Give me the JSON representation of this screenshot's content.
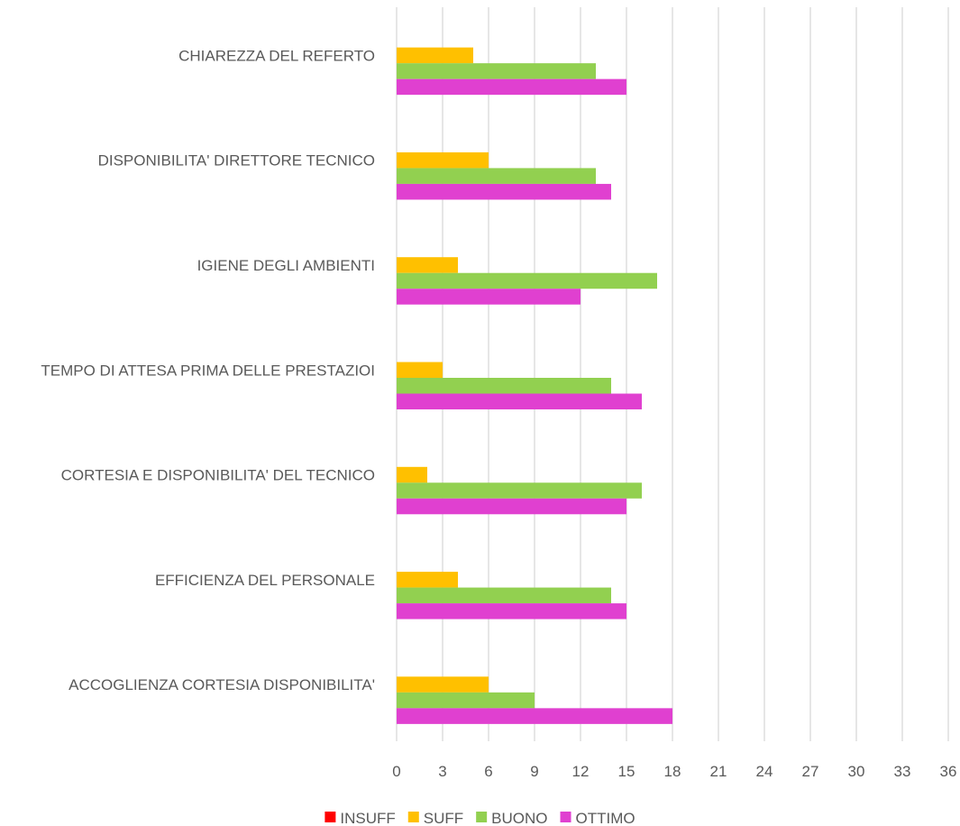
{
  "chart_data": {
    "type": "bar",
    "orientation": "horizontal",
    "categories": [
      "CHIAREZZA DEL REFERTO",
      "DISPONIBILITA' DIRETTORE TECNICO",
      "IGIENE DEGLI AMBIENTI",
      "TEMPO DI ATTESA PRIMA DELLE PRESTAZIOI",
      "CORTESIA E DISPONIBILITA' DEL TECNICO",
      "EFFICIENZA DEL PERSONALE",
      "ACCOGLIENZA CORTESIA DISPONIBILITA'"
    ],
    "series": [
      {
        "name": "INSUFF",
        "color": "#ff0000",
        "values": [
          0,
          0,
          0,
          0,
          0,
          0,
          0
        ]
      },
      {
        "name": "SUFF",
        "color": "#ffc000",
        "values": [
          5,
          6,
          4,
          3,
          2,
          4,
          6
        ]
      },
      {
        "name": "BUONO",
        "color": "#92d050",
        "values": [
          13,
          13,
          17,
          14,
          16,
          14,
          9
        ]
      },
      {
        "name": "OTTIMO",
        "color": "#e040d0",
        "values": [
          15,
          14,
          12,
          16,
          15,
          15,
          18
        ]
      }
    ],
    "xlim": [
      0,
      36
    ],
    "xticks": [
      "0",
      "3",
      "6",
      "9",
      "12",
      "15",
      "18",
      "21",
      "24",
      "27",
      "30",
      "33",
      "36"
    ],
    "grid": true,
    "gridColor": "#d9d9d9",
    "legend": "bottom",
    "title": "",
    "xlabel": "",
    "ylabel": ""
  }
}
